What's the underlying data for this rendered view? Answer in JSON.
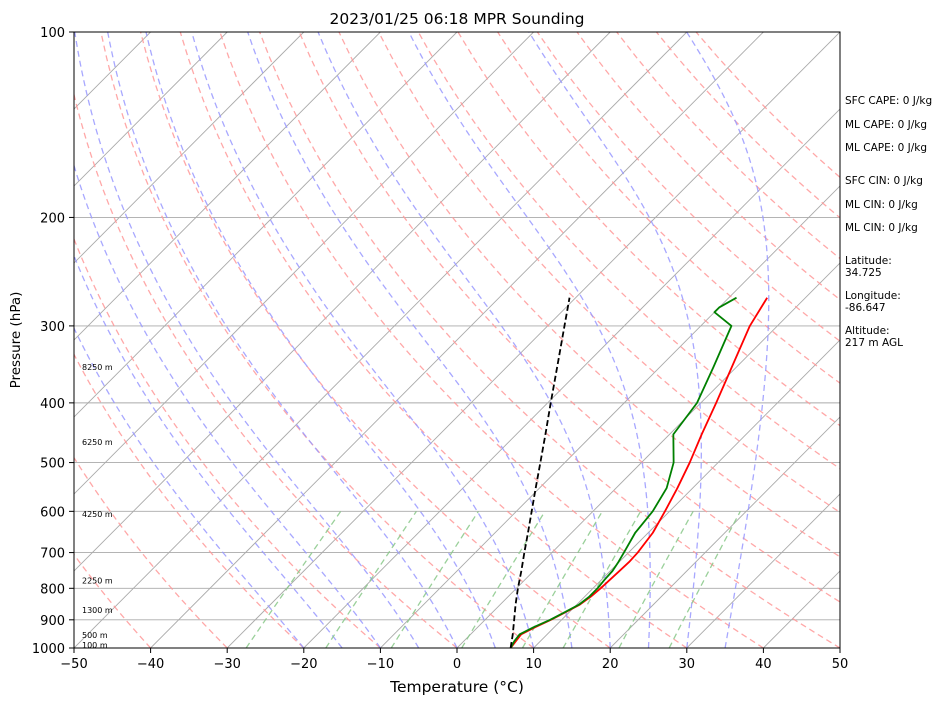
{
  "chart_data": {
    "type": "line",
    "title": "2023/01/25 06:18 MPR Sounding",
    "xlabel": "Temperature (°C)",
    "ylabel": "Pressure (hPa)",
    "xlim": [
      -50,
      50
    ],
    "ylim": [
      1000,
      100
    ],
    "y_scale": "log",
    "skew": true,
    "grid": true,
    "x_ticks": [
      "−50",
      "−40",
      "−30",
      "−20",
      "−10",
      "0",
      "10",
      "20",
      "30",
      "40",
      "50"
    ],
    "x_tick_values": [
      -50,
      -40,
      -30,
      -20,
      -10,
      0,
      10,
      20,
      30,
      40,
      50
    ],
    "y_ticks": [
      "1000",
      "900",
      "800",
      "700",
      "600",
      "500",
      "400",
      "300",
      "200",
      "100"
    ],
    "y_tick_values": [
      1000,
      900,
      800,
      700,
      600,
      500,
      400,
      300,
      200,
      100
    ],
    "series": [
      {
        "role": "temperature",
        "color": "#ff0000",
        "points": [
          [
            1000,
            7.0
          ],
          [
            975,
            6.8
          ],
          [
            950,
            6.6
          ],
          [
            925,
            7.5
          ],
          [
            900,
            8.6
          ],
          [
            875,
            9.5
          ],
          [
            850,
            10.4
          ],
          [
            825,
            10.8
          ],
          [
            800,
            11.0
          ],
          [
            775,
            11.1
          ],
          [
            750,
            11.2
          ],
          [
            725,
            11.3
          ],
          [
            700,
            11.2
          ],
          [
            650,
            10.6
          ],
          [
            600,
            9.4
          ],
          [
            550,
            8.0
          ],
          [
            500,
            6.3
          ],
          [
            450,
            4.2
          ],
          [
            400,
            2.0
          ],
          [
            350,
            -0.6
          ],
          [
            300,
            -3.6
          ],
          [
            270,
            -5.0
          ]
        ]
      },
      {
        "role": "dewpoint",
        "color": "#008000",
        "points": [
          [
            1000,
            7.0
          ],
          [
            975,
            6.6
          ],
          [
            950,
            6.4
          ],
          [
            925,
            7.3
          ],
          [
            900,
            8.5
          ],
          [
            875,
            9.4
          ],
          [
            850,
            10.3
          ],
          [
            825,
            10.6
          ],
          [
            800,
            10.6
          ],
          [
            775,
            10.4
          ],
          [
            750,
            10.3
          ],
          [
            725,
            9.9
          ],
          [
            700,
            9.4
          ],
          [
            650,
            8.3
          ],
          [
            600,
            7.8
          ],
          [
            550,
            6.6
          ],
          [
            500,
            4.2
          ],
          [
            450,
            0.5
          ],
          [
            400,
            -0.5
          ],
          [
            350,
            -3.0
          ],
          [
            300,
            -6.0
          ],
          [
            285,
            -10.0
          ],
          [
            280,
            -10.0
          ],
          [
            270,
            -9.0
          ]
        ]
      },
      {
        "role": "parcel profile",
        "color": "#000000",
        "points": [
          [
            1000,
            7.0
          ],
          [
            950,
            5.5
          ],
          [
            900,
            3.8
          ],
          [
            850,
            2.0
          ],
          [
            800,
            0.2
          ],
          [
            750,
            -1.6
          ],
          [
            700,
            -3.6
          ],
          [
            650,
            -5.7
          ],
          [
            600,
            -8.0
          ],
          [
            550,
            -10.5
          ],
          [
            500,
            -13.2
          ],
          [
            450,
            -16.2
          ],
          [
            400,
            -19.6
          ],
          [
            350,
            -23.4
          ],
          [
            300,
            -27.8
          ],
          [
            270,
            -30.8
          ]
        ]
      }
    ],
    "dry_adiabats_theta_c": [
      -40,
      -30,
      -20,
      -10,
      0,
      10,
      20,
      30,
      40,
      50,
      60,
      70,
      80,
      90,
      100,
      110,
      120,
      130,
      140,
      150,
      160
    ],
    "moist_adiabats_c": [
      -20,
      -15,
      -10,
      -5,
      0,
      5,
      10,
      15,
      20,
      25,
      30,
      35
    ],
    "mixing_ratio_lines_g_kg": [
      0.4,
      1,
      2,
      4,
      7,
      10,
      16,
      24
    ],
    "height_labels": [
      {
        "text": "100 m",
        "pressure": 988
      },
      {
        "text": "500 m",
        "pressure": 953
      },
      {
        "text": "1300 m",
        "pressure": 867
      },
      {
        "text": "2250 m",
        "pressure": 777
      },
      {
        "text": "4250 m",
        "pressure": 606
      },
      {
        "text": "6250 m",
        "pressure": 463
      },
      {
        "text": "8250 m",
        "pressure": 350
      }
    ],
    "colors": {
      "temperature": "#ff0000",
      "dewpoint": "#008000",
      "parcel": "#000000",
      "dry_adiabat": "#ff9999",
      "moist_adiabat": "#9999ff",
      "mixing_ratio": "#88c888",
      "isotherm": "#aaaaaa",
      "isobar": "#aaaaaa"
    }
  },
  "info_panel": {
    "sfc_cape": "SFC CAPE: 0 J/kg",
    "ml_cape_1": "ML CAPE: 0 J/kg",
    "ml_cape_2": "ML CAPE: 0 J/kg",
    "sfc_cin": "SFC CIN: 0 J/kg",
    "ml_cin_1": "ML CIN: 0 J/kg",
    "ml_cin_2": "ML CIN: 0 J/kg",
    "latitude_label": "Latitude:",
    "latitude_value": "34.725",
    "longitude_label": "Longitude:",
    "longitude_value": "-86.647",
    "altitude_label": "Altitude:",
    "altitude_value": "217 m AGL"
  }
}
